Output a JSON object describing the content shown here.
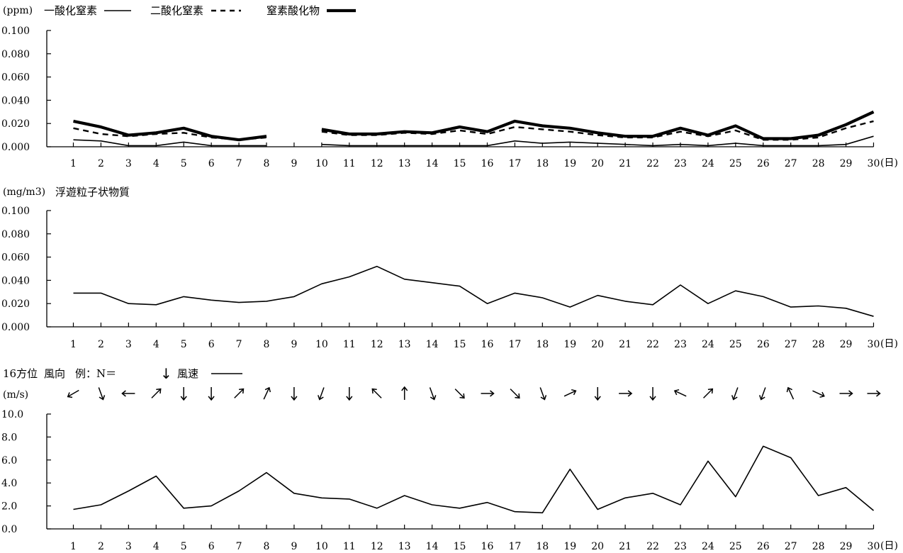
{
  "chart_data": [
    {
      "type": "line",
      "unit": "(ppm)",
      "x_unit": "(日)",
      "categories": [
        "1",
        "2",
        "3",
        "4",
        "5",
        "6",
        "7",
        "8",
        "9",
        "10",
        "11",
        "12",
        "13",
        "14",
        "15",
        "16",
        "17",
        "18",
        "19",
        "20",
        "21",
        "22",
        "23",
        "24",
        "25",
        "26",
        "27",
        "28",
        "29",
        "30"
      ],
      "y_ticks": [
        "0.000",
        "0.020",
        "0.040",
        "0.060",
        "0.080",
        "0.100"
      ],
      "ylim": [
        0,
        0.1
      ],
      "series": [
        {
          "name": "一酸化窒素",
          "style": "thin-solid",
          "values": [
            0.006,
            0.005,
            0.001,
            0.001,
            0.004,
            0.001,
            0.001,
            0.001,
            null,
            0.002,
            0.001,
            0.001,
            0.001,
            0.001,
            0.001,
            0.001,
            0.005,
            0.003,
            0.004,
            0.003,
            0.002,
            0.001,
            0.002,
            0.001,
            0.003,
            0.001,
            0.001,
            0.001,
            0.002,
            0.009
          ]
        },
        {
          "name": "二酸化窒素",
          "style": "dashed",
          "values": [
            0.016,
            0.011,
            0.009,
            0.011,
            0.012,
            0.008,
            0.006,
            0.008,
            null,
            0.013,
            0.01,
            0.01,
            0.012,
            0.011,
            0.014,
            0.011,
            0.017,
            0.015,
            0.013,
            0.01,
            0.008,
            0.008,
            0.013,
            0.009,
            0.014,
            0.006,
            0.006,
            0.008,
            0.016,
            0.022
          ]
        },
        {
          "name": "窒素酸化物",
          "style": "thick-solid",
          "values": [
            0.022,
            0.017,
            0.01,
            0.012,
            0.016,
            0.009,
            0.006,
            0.009,
            null,
            0.015,
            0.011,
            0.011,
            0.013,
            0.012,
            0.017,
            0.013,
            0.022,
            0.018,
            0.016,
            0.012,
            0.009,
            0.009,
            0.016,
            0.01,
            0.018,
            0.007,
            0.007,
            0.01,
            0.019,
            0.03
          ]
        }
      ]
    },
    {
      "type": "line",
      "unit": "(mg/m3)",
      "x_unit": "(日)",
      "categories": [
        "1",
        "2",
        "3",
        "4",
        "5",
        "6",
        "7",
        "8",
        "9",
        "10",
        "11",
        "12",
        "13",
        "14",
        "15",
        "16",
        "17",
        "18",
        "19",
        "20",
        "21",
        "22",
        "23",
        "24",
        "25",
        "26",
        "27",
        "28",
        "29",
        "30"
      ],
      "y_ticks": [
        "0.000",
        "0.020",
        "0.040",
        "0.060",
        "0.080",
        "0.100"
      ],
      "ylim": [
        0,
        0.1
      ],
      "series": [
        {
          "name": "浮遊粒子状物質",
          "style": "thin-solid",
          "values": [
            0.029,
            0.029,
            0.02,
            0.019,
            0.026,
            0.023,
            0.021,
            0.022,
            0.026,
            0.037,
            0.043,
            0.052,
            0.041,
            0.038,
            0.035,
            0.02,
            0.029,
            0.025,
            0.017,
            0.027,
            0.022,
            0.019,
            0.036,
            0.02,
            0.031,
            0.026,
            0.017,
            0.018,
            0.016,
            0.009
          ]
        }
      ]
    },
    {
      "type": "line",
      "unit": "(m/s)",
      "x_unit": "(日)",
      "legend_prefix": "16方位",
      "legend_direction_label": "風向",
      "legend_example_label": "例：N＝",
      "legend_example_arrow": "↓",
      "legend_speed_label": "風速",
      "categories": [
        "1",
        "2",
        "3",
        "4",
        "5",
        "6",
        "7",
        "8",
        "9",
        "10",
        "11",
        "12",
        "13",
        "14",
        "15",
        "16",
        "17",
        "18",
        "19",
        "20",
        "21",
        "22",
        "23",
        "24",
        "25",
        "26",
        "27",
        "28",
        "29",
        "30"
      ],
      "y_ticks": [
        "0.0",
        "2.0",
        "4.0",
        "6.0",
        "8.0",
        "10.0"
      ],
      "ylim": [
        0,
        10
      ],
      "wind_direction_angles": [
        60,
        -20,
        90,
        -135,
        0,
        0,
        -135,
        -155,
        0,
        20,
        0,
        135,
        180,
        -20,
        -45,
        -90,
        -45,
        -20,
        -115,
        0,
        -90,
        0,
        115,
        -135,
        20,
        20,
        155,
        -65,
        -90,
        -90
      ],
      "series": [
        {
          "name": "風速",
          "style": "thin-solid",
          "values": [
            1.7,
            2.1,
            3.3,
            4.6,
            1.8,
            2.0,
            3.3,
            4.9,
            3.1,
            2.7,
            2.6,
            1.8,
            2.9,
            2.1,
            1.8,
            2.3,
            1.5,
            1.4,
            5.2,
            1.7,
            2.7,
            3.1,
            2.1,
            5.9,
            2.8,
            7.2,
            6.2,
            2.9,
            3.6,
            1.6
          ]
        }
      ]
    }
  ]
}
